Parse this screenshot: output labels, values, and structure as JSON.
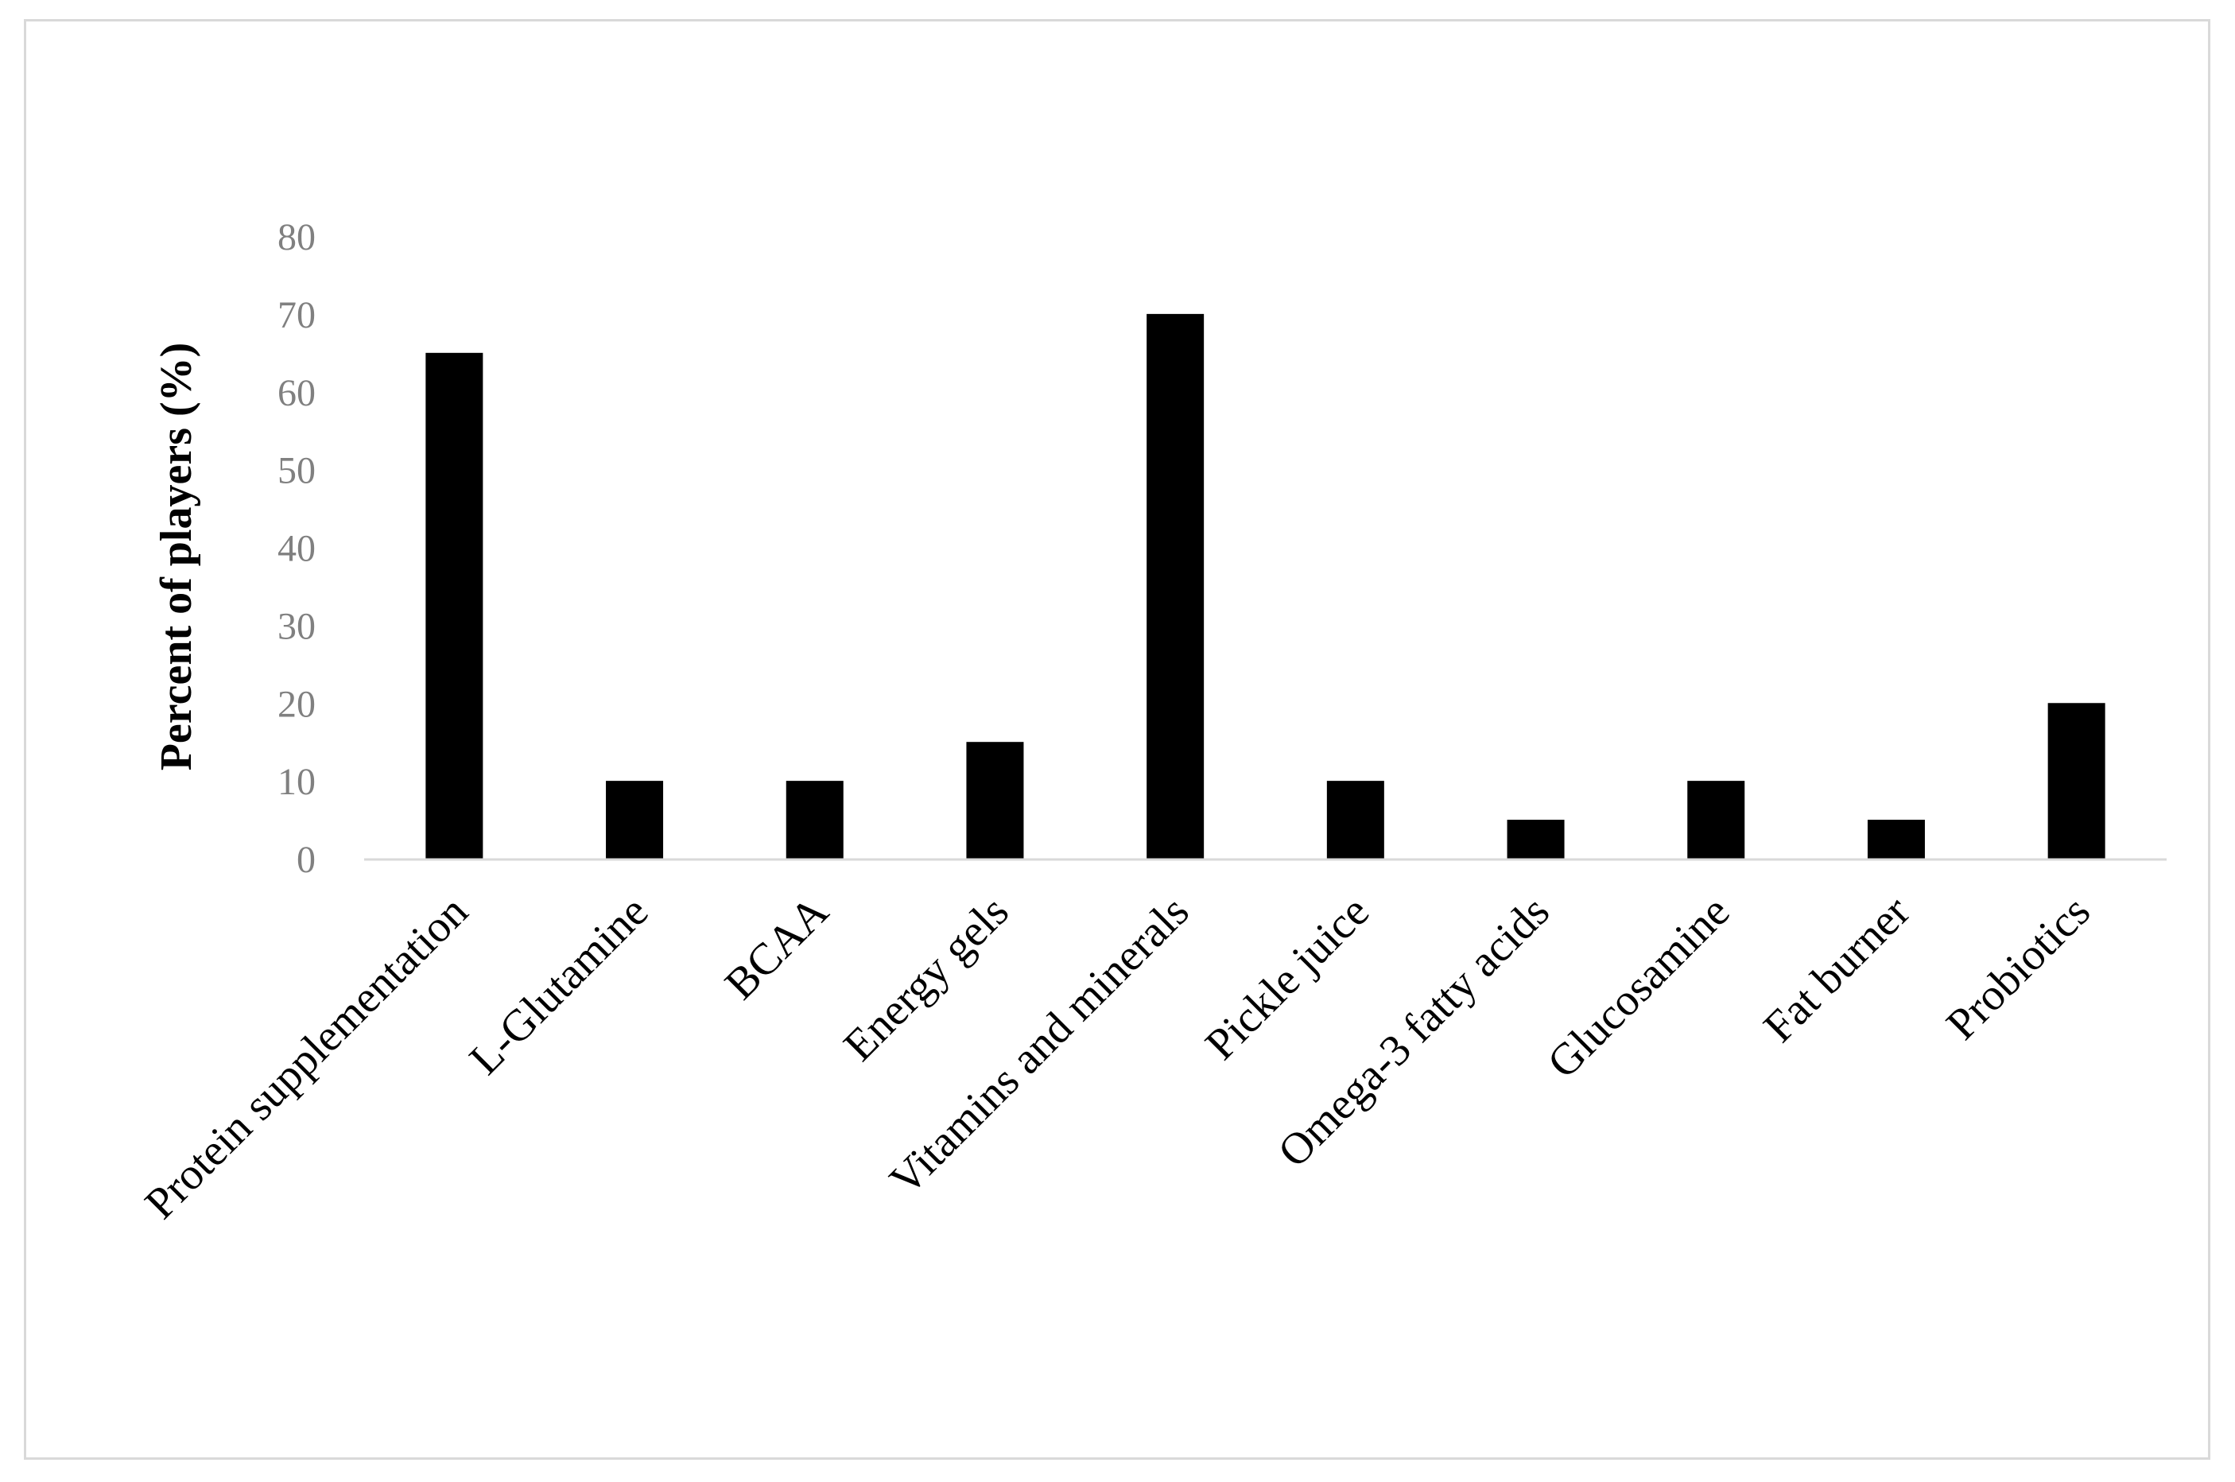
{
  "chart_data": {
    "type": "bar",
    "title": "",
    "xlabel": "",
    "ylabel": "Percent of players (%)",
    "ylim": [
      0,
      80
    ],
    "yticks": [
      0,
      10,
      20,
      30,
      40,
      50,
      60,
      70,
      80
    ],
    "grid": false,
    "legend": "none",
    "categories": [
      "Protein supplementation",
      "L-Glutamine",
      "BCAA",
      "Energy gels",
      "Vitamins and minerals",
      "Pickle juice",
      "Omega-3 fatty acids",
      "Glucosamine",
      "Fat burner",
      "Probiotics"
    ],
    "values": [
      65,
      10,
      10,
      15,
      70,
      10,
      5,
      10,
      5,
      20
    ],
    "colors": {
      "bar": "#000000",
      "axis": "#d9d9d9",
      "tick_text": "#808080",
      "label_text": "#000000",
      "frame": "#d9d9d9"
    }
  }
}
